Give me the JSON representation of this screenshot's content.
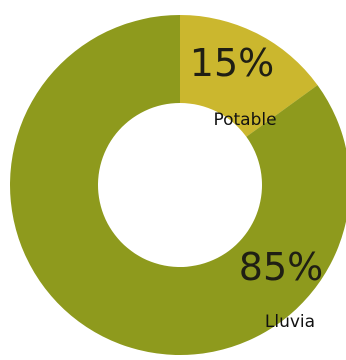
{
  "chart_data": {
    "type": "pie",
    "donut": true,
    "title": "",
    "labels": [
      "Potable",
      "Lluvia"
    ],
    "values": [
      15,
      85
    ],
    "value_labels": [
      "15%",
      "85%"
    ],
    "colors": [
      "#cbb72e",
      "#8e9a1d"
    ],
    "start_angle_deg": 0,
    "legend": "none"
  }
}
